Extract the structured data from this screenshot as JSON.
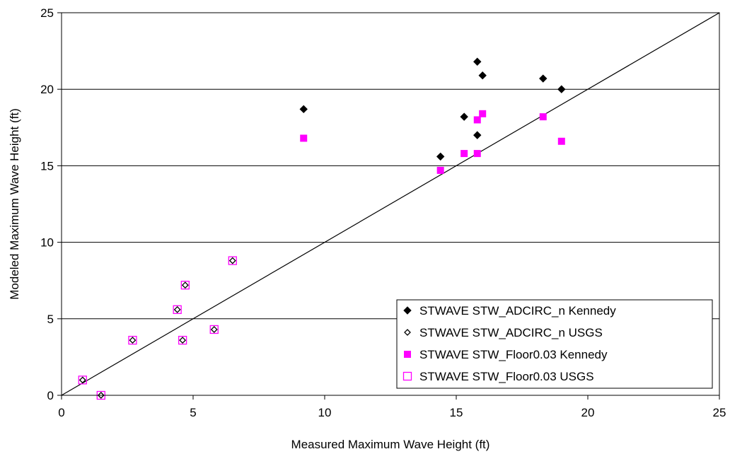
{
  "chart_data": {
    "type": "scatter",
    "title": "",
    "xlabel": "Measured Maximum Wave Height (ft)",
    "ylabel": "Modeled Maximum Wave Height (ft)",
    "xlim": [
      0,
      25
    ],
    "ylim": [
      0,
      25
    ],
    "x_ticks": [
      0,
      5,
      10,
      15,
      20,
      25
    ],
    "y_ticks": [
      0,
      5,
      10,
      15,
      20,
      25
    ],
    "x_tick_labels": [
      "0",
      "5",
      "10",
      "15",
      "20",
      "25"
    ],
    "y_tick_labels": [
      "0",
      "5",
      "10",
      "15",
      "20",
      "25"
    ],
    "grid": "horizontal",
    "legend_position": "bottom-right",
    "reference_line": {
      "type": "y=x",
      "from": [
        0,
        0
      ],
      "to": [
        25,
        25
      ],
      "color": "#000000"
    },
    "series": [
      {
        "name": "STWAVE STW_ADCIRC_n Kennedy",
        "marker": "diamond-filled",
        "color": "#000000",
        "x": [
          9.2,
          14.4,
          15.3,
          15.8,
          15.8,
          16.0,
          18.3,
          19.0
        ],
        "y": [
          18.7,
          15.6,
          18.2,
          21.8,
          17.0,
          20.9,
          20.7,
          20.0
        ]
      },
      {
        "name": "STWAVE STW_ADCIRC_n USGS",
        "marker": "diamond-open",
        "color": "#000000",
        "x": [
          0.8,
          1.5,
          2.7,
          4.4,
          4.6,
          4.7,
          5.8,
          6.5
        ],
        "y": [
          1.0,
          0.0,
          3.6,
          5.6,
          3.6,
          7.2,
          4.3,
          8.8
        ]
      },
      {
        "name": "STWAVE STW_Floor0.03 Kennedy",
        "marker": "square-filled",
        "color": "#ff00ff",
        "x": [
          9.2,
          14.4,
          15.3,
          15.8,
          15.8,
          16.0,
          18.3,
          19.0
        ],
        "y": [
          16.8,
          14.7,
          15.8,
          18.0,
          15.8,
          18.4,
          18.2,
          16.6
        ]
      },
      {
        "name": "STWAVE STW_Floor0.03 USGS",
        "marker": "square-open",
        "color": "#ff00ff",
        "x": [
          0.8,
          1.5,
          2.7,
          4.4,
          4.6,
          4.7,
          5.8,
          6.5
        ],
        "y": [
          1.0,
          0.0,
          3.6,
          5.6,
          3.6,
          7.2,
          4.3,
          8.8
        ]
      }
    ]
  }
}
